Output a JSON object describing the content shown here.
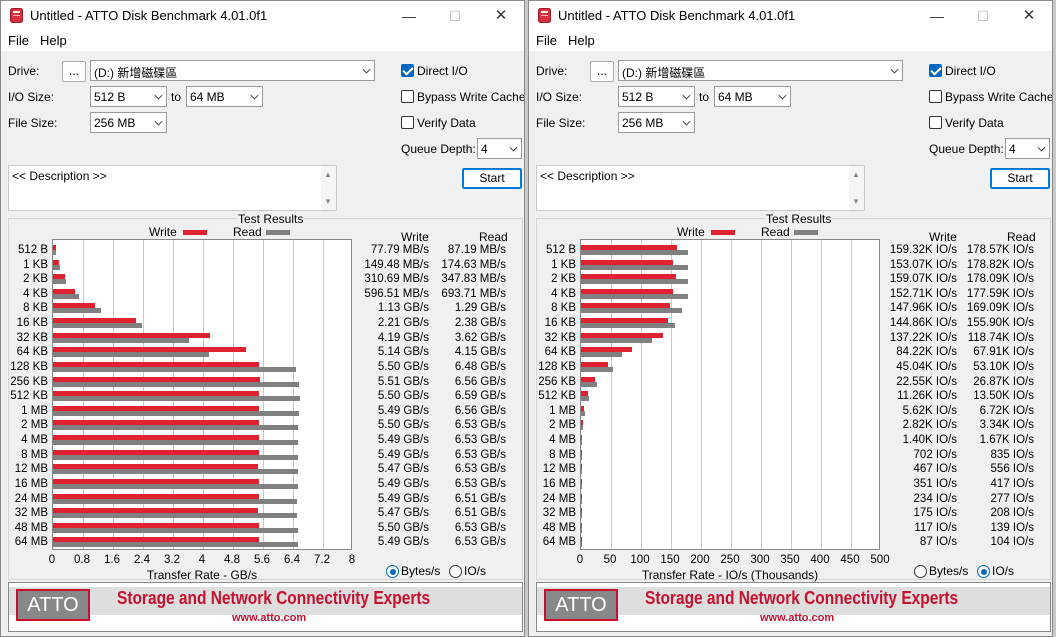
{
  "windows": [
    {
      "title": "Untitled - ATTO Disk Benchmark 4.01.0f1",
      "menu": [
        "File",
        "Help"
      ],
      "drive_label": "Drive:",
      "browse_label": "...",
      "drive_value": "(D:) 新增磁碟區",
      "io_size_label": "I/O Size:",
      "io_from": "512 B",
      "to_label": "to",
      "io_to": "64 MB",
      "file_size_label": "File Size:",
      "file_size": "256 MB",
      "direct_io_label": "Direct I/O",
      "direct_io_checked": true,
      "bypass_label": "Bypass Write Cache",
      "bypass_checked": false,
      "verify_label": "Verify Data",
      "verify_checked": false,
      "queue_depth_label": "Queue Depth:",
      "queue_depth": "4",
      "start_label": "Start",
      "description": "<< Description >>",
      "results_title": "Test Results",
      "legend_write": "Write",
      "legend_read": "Read",
      "col_write": "Write",
      "col_read": "Read",
      "xlabel": "Transfer Rate - GB/s",
      "radio_bytes": "Bytes/s",
      "radio_io": "IO/s",
      "selected_unit": "bytes",
      "banner_logo": "ATTO",
      "banner_tagline": "Storage and Network Connectivity Experts",
      "banner_url": "www.atto.com",
      "chart_data": {
        "type": "bar",
        "orientation": "horizontal",
        "xlabel": "Transfer Rate - GB/s",
        "xlim": [
          0,
          8
        ],
        "x_ticks": [
          "0",
          "0.8",
          "1.6",
          "2.4",
          "3.2",
          "4",
          "4.8",
          "5.6",
          "6.4",
          "7.2",
          "8"
        ],
        "categories": [
          "512 B",
          "1 KB",
          "2 KB",
          "4 KB",
          "8 KB",
          "16 KB",
          "32 KB",
          "64 KB",
          "128 KB",
          "256 KB",
          "512 KB",
          "1 MB",
          "2 MB",
          "4 MB",
          "8 MB",
          "12 MB",
          "16 MB",
          "24 MB",
          "32 MB",
          "48 MB",
          "64 MB"
        ],
        "series": [
          {
            "name": "Write",
            "color": "#e02130",
            "values": [
              0.07779,
              0.14948,
              0.31069,
              0.59651,
              1.13,
              2.21,
              4.19,
              5.14,
              5.5,
              5.51,
              5.5,
              5.49,
              5.5,
              5.49,
              5.49,
              5.47,
              5.49,
              5.49,
              5.47,
              5.5,
              5.49
            ]
          },
          {
            "name": "Read",
            "color": "#808080",
            "values": [
              0.08719,
              0.17463,
              0.34783,
              0.69371,
              1.29,
              2.38,
              3.62,
              4.15,
              6.48,
              6.56,
              6.59,
              6.56,
              6.53,
              6.53,
              6.53,
              6.53,
              6.53,
              6.51,
              6.51,
              6.53,
              6.53
            ]
          }
        ],
        "write_labels": [
          "77.79 MB/s",
          "149.48 MB/s",
          "310.69 MB/s",
          "596.51 MB/s",
          "1.13 GB/s",
          "2.21 GB/s",
          "4.19 GB/s",
          "5.14 GB/s",
          "5.50 GB/s",
          "5.51 GB/s",
          "5.50 GB/s",
          "5.49 GB/s",
          "5.50 GB/s",
          "5.49 GB/s",
          "5.49 GB/s",
          "5.47 GB/s",
          "5.49 GB/s",
          "5.49 GB/s",
          "5.47 GB/s",
          "5.50 GB/s",
          "5.49 GB/s"
        ],
        "read_labels": [
          "87.19 MB/s",
          "174.63 MB/s",
          "347.83 MB/s",
          "693.71 MB/s",
          "1.29 GB/s",
          "2.38 GB/s",
          "3.62 GB/s",
          "4.15 GB/s",
          "6.48 GB/s",
          "6.56 GB/s",
          "6.59 GB/s",
          "6.56 GB/s",
          "6.53 GB/s",
          "6.53 GB/s",
          "6.53 GB/s",
          "6.53 GB/s",
          "6.53 GB/s",
          "6.51 GB/s",
          "6.51 GB/s",
          "6.53 GB/s",
          "6.53 GB/s"
        ]
      }
    },
    {
      "title": "Untitled - ATTO Disk Benchmark 4.01.0f1",
      "menu": [
        "File",
        "Help"
      ],
      "drive_label": "Drive:",
      "browse_label": "...",
      "drive_value": "(D:) 新增磁碟區",
      "io_size_label": "I/O Size:",
      "io_from": "512 B",
      "to_label": "to",
      "io_to": "64 MB",
      "file_size_label": "File Size:",
      "file_size": "256 MB",
      "direct_io_label": "Direct I/O",
      "direct_io_checked": true,
      "bypass_label": "Bypass Write Cache",
      "bypass_checked": false,
      "verify_label": "Verify Data",
      "verify_checked": false,
      "queue_depth_label": "Queue Depth:",
      "queue_depth": "4",
      "start_label": "Start",
      "description": "<< Description >>",
      "results_title": "Test Results",
      "legend_write": "Write",
      "legend_read": "Read",
      "col_write": "Write",
      "col_read": "Read",
      "xlabel": "Transfer Rate - IO/s (Thousands)",
      "radio_bytes": "Bytes/s",
      "radio_io": "IO/s",
      "selected_unit": "io",
      "banner_logo": "ATTO",
      "banner_tagline": "Storage and Network Connectivity Experts",
      "banner_url": "www.atto.com",
      "chart_data": {
        "type": "bar",
        "orientation": "horizontal",
        "xlabel": "Transfer Rate - IO/s (Thousands)",
        "xlim": [
          0,
          500
        ],
        "x_ticks": [
          "0",
          "50",
          "100",
          "150",
          "200",
          "250",
          "300",
          "350",
          "400",
          "450",
          "500"
        ],
        "categories": [
          "512 B",
          "1 KB",
          "2 KB",
          "4 KB",
          "8 KB",
          "16 KB",
          "32 KB",
          "64 KB",
          "128 KB",
          "256 KB",
          "512 KB",
          "1 MB",
          "2 MB",
          "4 MB",
          "8 MB",
          "12 MB",
          "16 MB",
          "24 MB",
          "32 MB",
          "48 MB",
          "64 MB"
        ],
        "series": [
          {
            "name": "Write",
            "color": "#e02130",
            "values": [
              159.32,
              153.07,
              159.07,
              152.71,
              147.96,
              144.86,
              137.22,
              84.22,
              45.04,
              22.55,
              11.26,
              5.62,
              2.82,
              1.4,
              0.702,
              0.467,
              0.351,
              0.234,
              0.175,
              0.117,
              0.087
            ]
          },
          {
            "name": "Read",
            "color": "#808080",
            "values": [
              178.57,
              178.82,
              178.09,
              177.59,
              169.09,
              155.9,
              118.74,
              67.91,
              53.1,
              26.87,
              13.5,
              6.72,
              3.34,
              1.67,
              0.835,
              0.556,
              0.417,
              0.277,
              0.208,
              0.139,
              0.104
            ]
          }
        ],
        "write_labels": [
          "159.32K IO/s",
          "153.07K IO/s",
          "159.07K IO/s",
          "152.71K IO/s",
          "147.96K IO/s",
          "144.86K IO/s",
          "137.22K IO/s",
          "84.22K IO/s",
          "45.04K IO/s",
          "22.55K IO/s",
          "11.26K IO/s",
          "5.62K IO/s",
          "2.82K IO/s",
          "1.40K IO/s",
          "702 IO/s",
          "467 IO/s",
          "351 IO/s",
          "234 IO/s",
          "175 IO/s",
          "117 IO/s",
          "87 IO/s"
        ],
        "read_labels": [
          "178.57K IO/s",
          "178.82K IO/s",
          "178.09K IO/s",
          "177.59K IO/s",
          "169.09K IO/s",
          "155.90K IO/s",
          "118.74K IO/s",
          "67.91K IO/s",
          "53.10K IO/s",
          "26.87K IO/s",
          "13.50K IO/s",
          "6.72K IO/s",
          "3.34K IO/s",
          "1.67K IO/s",
          "835 IO/s",
          "556 IO/s",
          "417 IO/s",
          "277 IO/s",
          "208 IO/s",
          "139 IO/s",
          "104 IO/s"
        ]
      }
    }
  ]
}
